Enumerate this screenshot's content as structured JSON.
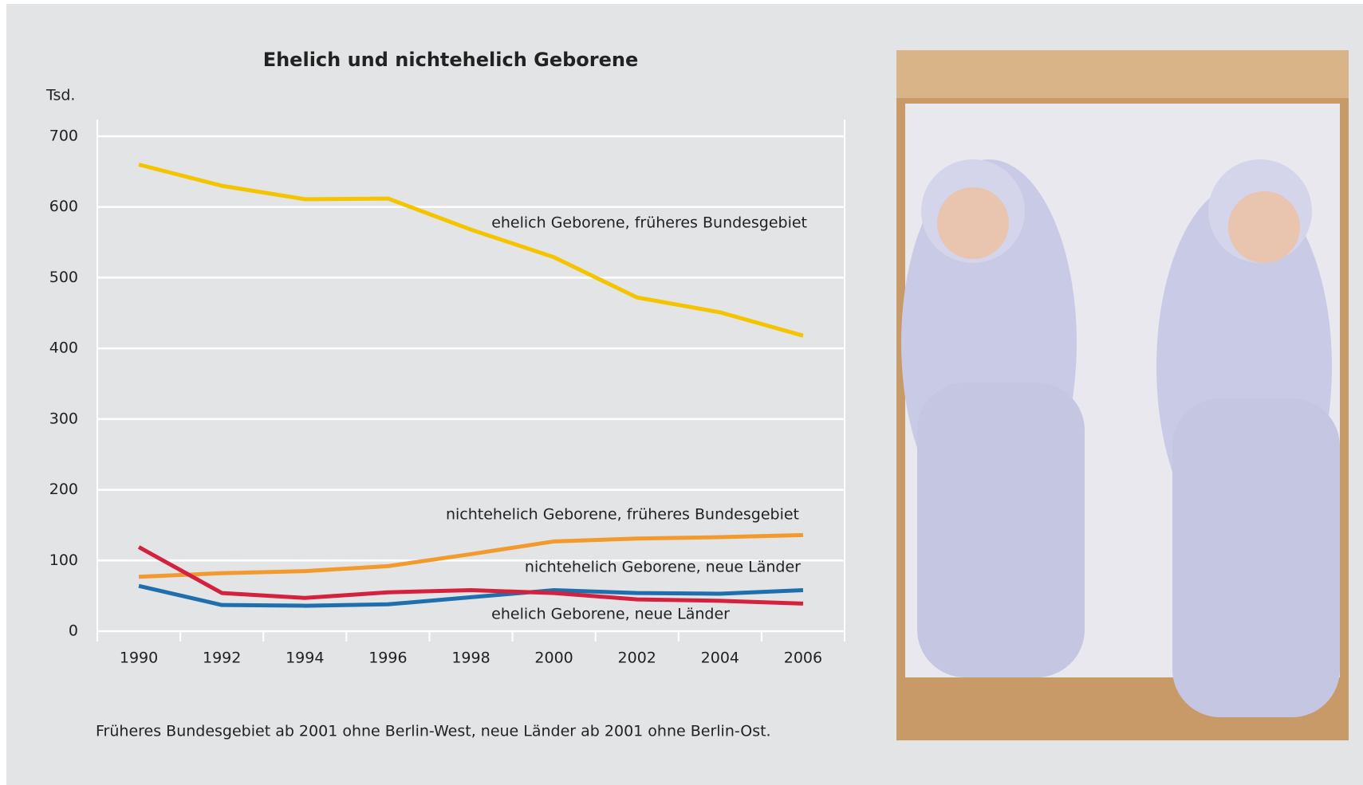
{
  "chart_data": {
    "type": "line",
    "title": "Ehelich und nichtehelich Geborene",
    "y_label": "Tsd.",
    "categories": [
      "1990",
      "1992",
      "1994",
      "1996",
      "1998",
      "2000",
      "2002",
      "2004",
      "2006"
    ],
    "series": [
      {
        "name": "ehelich Geborene, früheres Bundesgebiet",
        "color": "#f5c400",
        "values": [
          660,
          630,
          611,
          612,
          568,
          529,
          472,
          451,
          418
        ]
      },
      {
        "name": "nichtehelich Geborene, früheres Bundesgebiet",
        "color": "#f39a2e",
        "values": [
          77,
          82,
          85,
          92,
          109,
          127,
          131,
          133,
          136
        ]
      },
      {
        "name": "nichtehelich Geborene, neue Länder",
        "color": "#1f6fae",
        "values": [
          64,
          37,
          36,
          38,
          48,
          58,
          54,
          53,
          58
        ]
      },
      {
        "name": "ehelich Geborene, neue Länder",
        "color": "#d4213d",
        "values": [
          119,
          54,
          47,
          55,
          58,
          54,
          45,
          43,
          39
        ]
      }
    ],
    "ylim": [
      0,
      700
    ],
    "yticks": [
      0,
      100,
      200,
      300,
      400,
      500,
      600,
      700
    ],
    "grid": true,
    "note": "Früheres Bundesgebiet ab 2001 ohne Berlin-West, neue Länder ab 2001 ohne Berlin-Ost."
  }
}
